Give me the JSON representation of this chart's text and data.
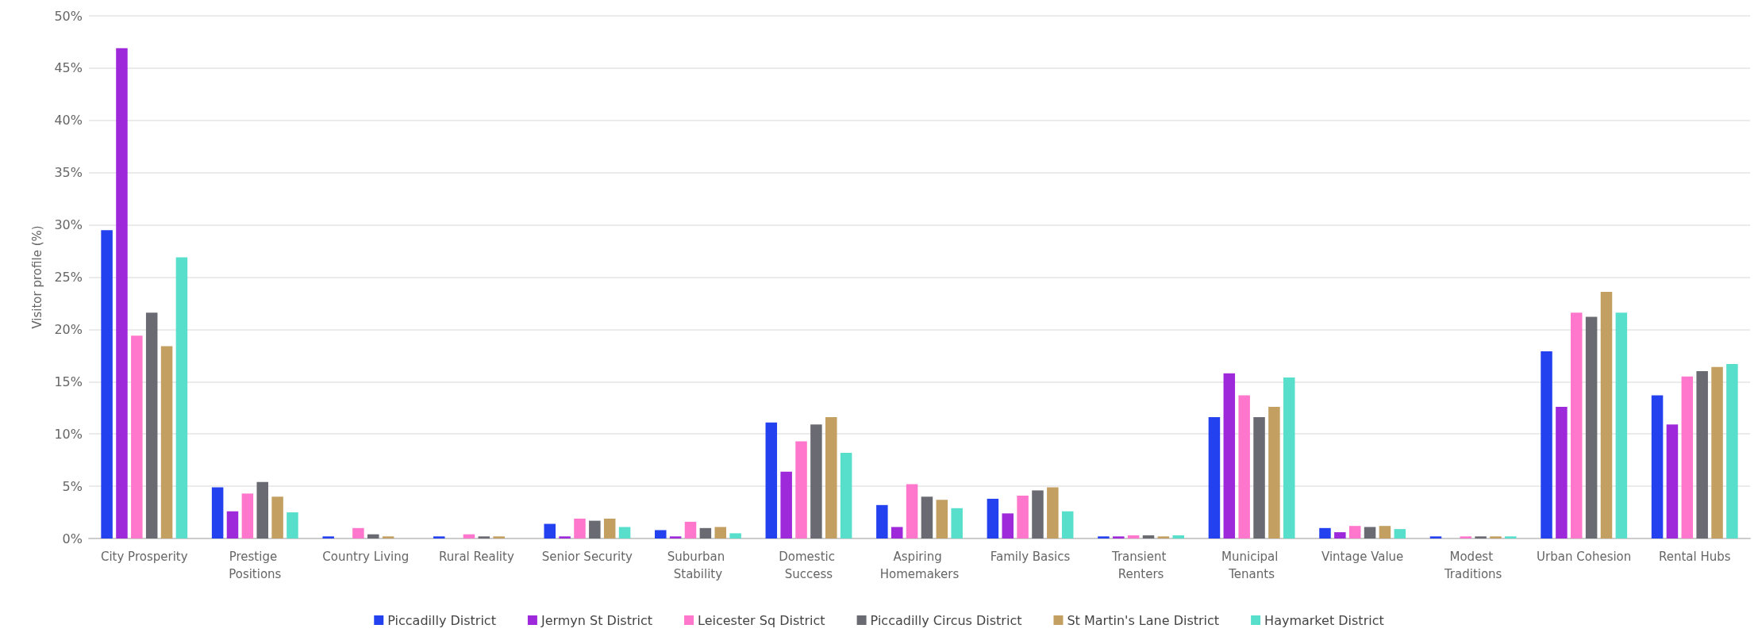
{
  "chart_data": {
    "type": "bar",
    "ylabel": "Visitor profile (%)",
    "categories": [
      "City Prosperity",
      "Prestige Positions",
      "Country Living",
      "Rural Reality",
      "Senior Security",
      "Suburban Stability",
      "Domestic Success",
      "Aspiring Homemakers",
      "Family Basics",
      "Transient Renters",
      "Municipal Tenants",
      "Vintage Value",
      "Modest Traditions",
      "Urban Cohesion",
      "Rental Hubs"
    ],
    "series": [
      {
        "name": "Piccadilly District",
        "color": "#2441f0",
        "values": [
          29.5,
          4.9,
          0.2,
          0.2,
          1.4,
          0.8,
          11.1,
          3.2,
          3.8,
          0.2,
          11.6,
          1.0,
          0.2,
          17.9,
          13.7
        ]
      },
      {
        "name": "Jermyn St District",
        "color": "#9e29db",
        "values": [
          46.9,
          2.6,
          0,
          0,
          0.2,
          0.2,
          6.4,
          1.1,
          2.4,
          0.2,
          15.8,
          0.6,
          0,
          12.6,
          10.9
        ]
      },
      {
        "name": "Leicester Sq District",
        "color": "#ff77cc",
        "values": [
          19.4,
          4.3,
          1.0,
          0.4,
          1.9,
          1.6,
          9.3,
          5.2,
          4.1,
          0.3,
          13.7,
          1.2,
          0.2,
          21.6,
          15.5
        ]
      },
      {
        "name": "Piccadilly Circus District",
        "color": "#6a6a72",
        "values": [
          21.6,
          5.4,
          0.4,
          0.2,
          1.7,
          1.0,
          10.9,
          4.0,
          4.6,
          0.3,
          11.6,
          1.1,
          0.2,
          21.2,
          16.0
        ]
      },
      {
        "name": "St Martin's Lane District",
        "color": "#c49f62",
        "values": [
          18.4,
          4.0,
          0.2,
          0.2,
          1.9,
          1.1,
          11.6,
          3.7,
          4.9,
          0.2,
          12.6,
          1.2,
          0.2,
          23.6,
          16.4
        ]
      },
      {
        "name": "Haymarket District",
        "color": "#57dfcc",
        "values": [
          26.9,
          2.5,
          0,
          0,
          1.1,
          0.5,
          8.2,
          2.9,
          2.6,
          0.3,
          15.4,
          0.9,
          0.2,
          21.6,
          16.7
        ]
      }
    ],
    "ylim": [
      0,
      50
    ],
    "yticks": [
      {
        "value": 0,
        "label": "0%"
      },
      {
        "value": 5,
        "label": "5%"
      },
      {
        "value": 10,
        "label": "10%"
      },
      {
        "value": 15,
        "label": "15%"
      },
      {
        "value": 20,
        "label": "20%"
      },
      {
        "value": 25,
        "label": "25%"
      },
      {
        "value": 30,
        "label": "30%"
      },
      {
        "value": 35,
        "label": "35%"
      },
      {
        "value": 40,
        "label": "40%"
      },
      {
        "value": 45,
        "label": "45%"
      },
      {
        "value": 50,
        "label": "50%"
      }
    ],
    "grid": "y",
    "legend": "bottom"
  }
}
